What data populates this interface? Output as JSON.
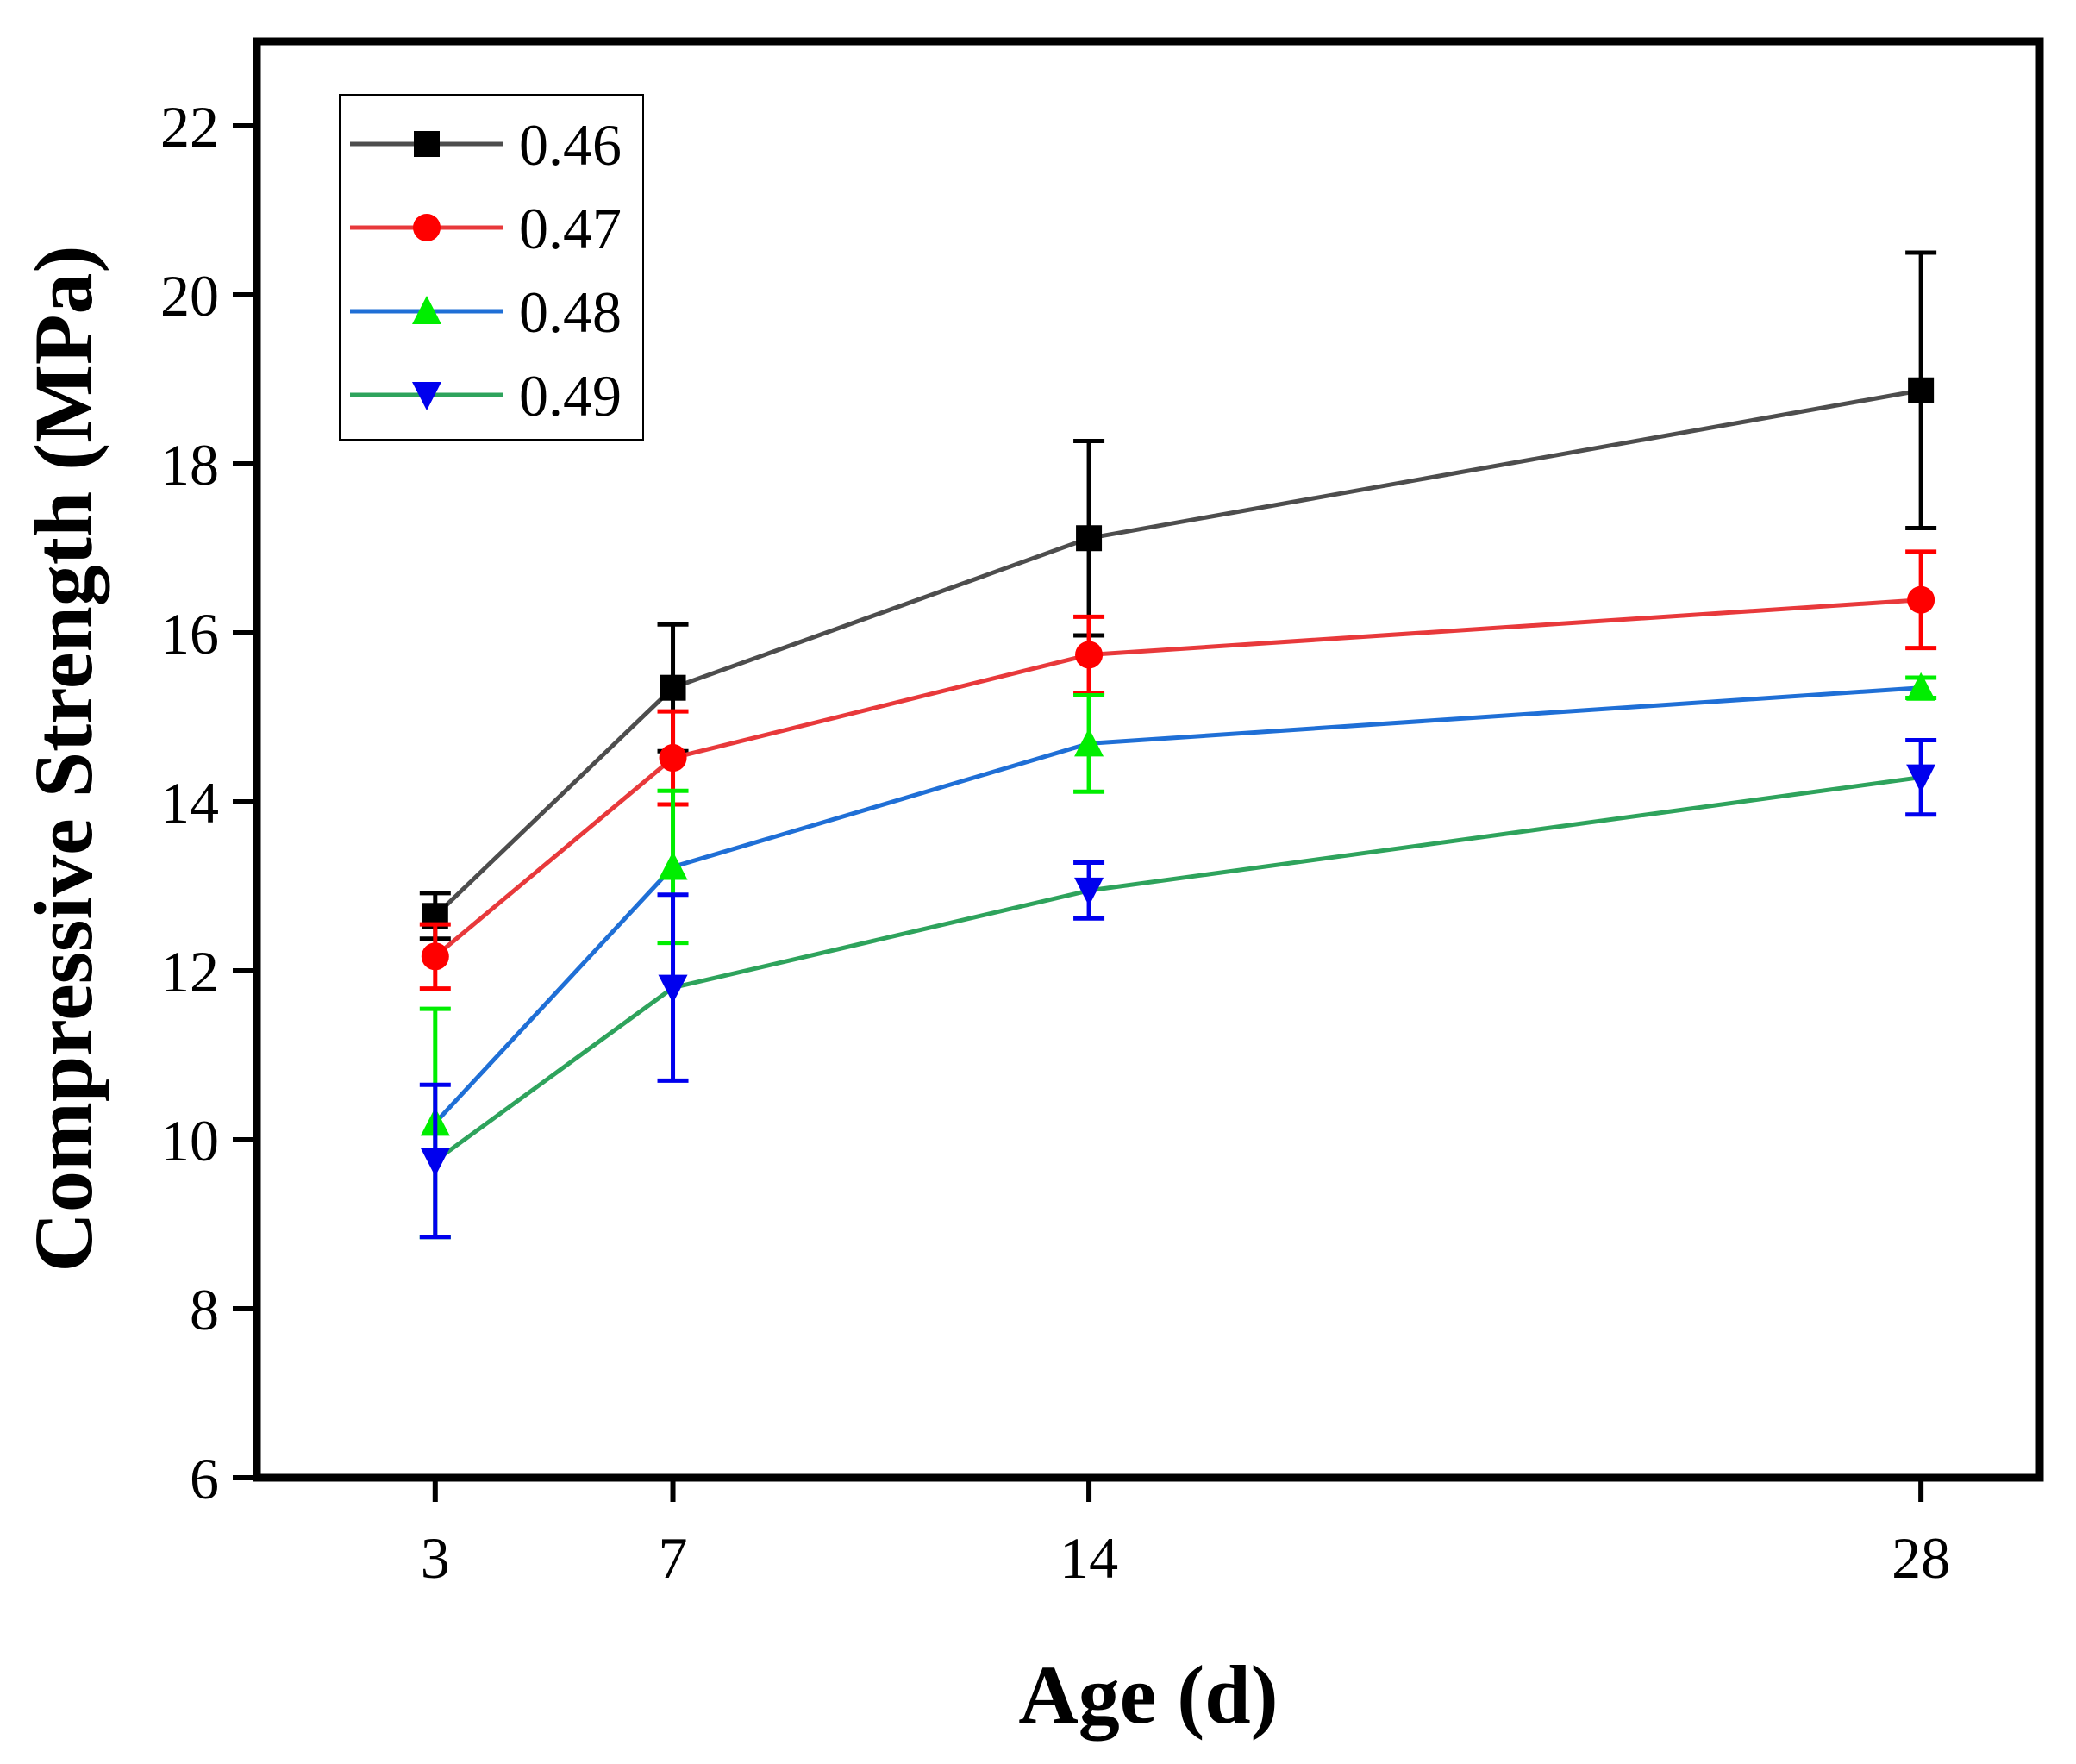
{
  "chart_data": {
    "type": "line",
    "title": "",
    "xlabel": "Age (d)",
    "ylabel": "Compressive Strength (MPa)",
    "x": [
      3,
      7,
      14,
      28
    ],
    "xticks": [
      "3",
      "7",
      "14",
      "28"
    ],
    "xlim": [
      0,
      30
    ],
    "ylim": [
      6,
      23
    ],
    "yticks": [
      "6",
      "8",
      "10",
      "12",
      "14",
      "16",
      "18",
      "20",
      "22"
    ],
    "grid": false,
    "legend_position": "top-left",
    "series": [
      {
        "name": "0.46",
        "line_color": "#4d4d4d",
        "marker_color": "#000000",
        "marker": "square",
        "values": [
          12.65,
          15.35,
          17.12,
          18.87
        ],
        "errors": [
          0.27,
          0.75,
          1.15,
          1.63
        ]
      },
      {
        "name": "0.47",
        "line_color": "#e8393b",
        "marker_color": "#ff0000",
        "marker": "circle",
        "values": [
          12.17,
          14.52,
          15.74,
          16.39
        ],
        "errors": [
          0.38,
          0.55,
          0.45,
          0.57
        ]
      },
      {
        "name": "0.48",
        "line_color": "#1f6fd6",
        "marker_color": "#00ee00",
        "marker": "triangle-up",
        "values": [
          10.2,
          13.23,
          14.69,
          15.35
        ],
        "errors": [
          1.35,
          0.9,
          0.57,
          0.12
        ]
      },
      {
        "name": "0.49",
        "line_color": "#2ea35c",
        "marker_color": "#0000ee",
        "marker": "triangle-down",
        "values": [
          9.75,
          11.8,
          12.95,
          14.29
        ],
        "errors": [
          0.9,
          1.1,
          0.33,
          0.44
        ]
      }
    ]
  }
}
